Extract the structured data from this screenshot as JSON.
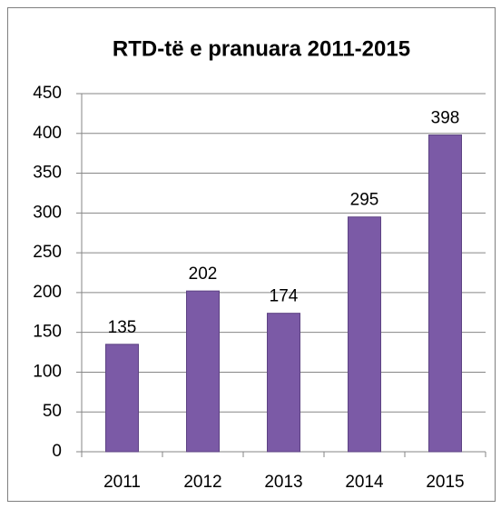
{
  "chart_data": {
    "type": "bar",
    "title": "RTD-të e pranuara 2011-2015",
    "categories": [
      "2011",
      "2012",
      "2013",
      "2014",
      "2015"
    ],
    "values": [
      135,
      202,
      174,
      295,
      398
    ],
    "color": "#7b5aa6",
    "ylim": [
      0,
      450
    ],
    "yticks": [
      0,
      50,
      100,
      150,
      200,
      250,
      300,
      350,
      400,
      450
    ],
    "grid": true
  }
}
